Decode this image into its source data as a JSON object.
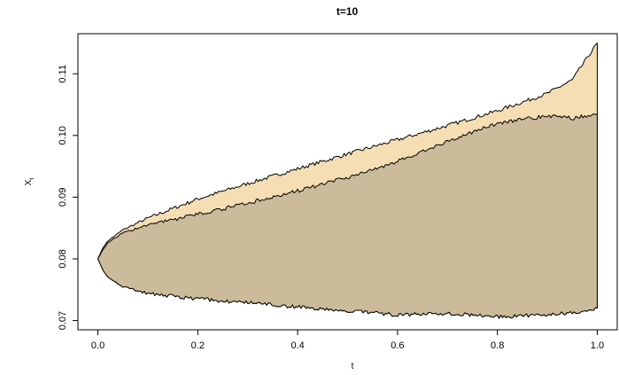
{
  "chart_data": {
    "type": "area",
    "title": "t=10",
    "xlabel": "t",
    "ylabel": "X",
    "ylabel_subscript": "t",
    "xlim": [
      -0.04,
      1.04
    ],
    "ylim": [
      0.0685,
      0.1165
    ],
    "x_ticks": [
      0.0,
      0.2,
      0.4,
      0.6,
      0.8,
      1.0
    ],
    "x_tick_labels": [
      "0.0",
      "0.2",
      "0.4",
      "0.6",
      "0.8",
      "1.0"
    ],
    "y_ticks": [
      0.07,
      0.08,
      0.09,
      0.1,
      0.11
    ],
    "y_tick_labels": [
      "0.07",
      "0.08",
      "0.09",
      "0.10",
      "0.11"
    ],
    "grid": false,
    "colors": {
      "outer_fill": "#f5deb3",
      "inner_fill": "#cbbb9a",
      "outline": "#000000"
    },
    "series": [
      {
        "role": "outer-envelope",
        "x": [
          0.0,
          0.01,
          0.02,
          0.05,
          0.1,
          0.2,
          0.3,
          0.4,
          0.5,
          0.6,
          0.7,
          0.8,
          0.9,
          0.95,
          1.0
        ],
        "upper": [
          0.08,
          0.0818,
          0.0829,
          0.0847,
          0.0866,
          0.0897,
          0.0922,
          0.0946,
          0.097,
          0.0993,
          0.1016,
          0.104,
          0.1068,
          0.109,
          0.115
        ],
        "lower": [
          0.08,
          0.0782,
          0.077,
          0.0755,
          0.0744,
          0.0735,
          0.0729,
          0.0722,
          0.0716,
          0.0709,
          0.0712,
          0.0706,
          0.0709,
          0.0713,
          0.072
        ]
      },
      {
        "role": "inner-envelope",
        "x": [
          0.0,
          0.01,
          0.02,
          0.05,
          0.1,
          0.2,
          0.3,
          0.4,
          0.5,
          0.6,
          0.7,
          0.8,
          0.9,
          0.95,
          1.0
        ],
        "upper": [
          0.08,
          0.0815,
          0.0826,
          0.0842,
          0.0855,
          0.0872,
          0.089,
          0.091,
          0.0932,
          0.0958,
          0.099,
          0.102,
          0.1032,
          0.1028,
          0.1035
        ],
        "lower": [
          0.08,
          0.0782,
          0.077,
          0.0755,
          0.0744,
          0.0735,
          0.0729,
          0.0722,
          0.0716,
          0.0709,
          0.0712,
          0.0706,
          0.0709,
          0.0713,
          0.072
        ]
      }
    ]
  }
}
